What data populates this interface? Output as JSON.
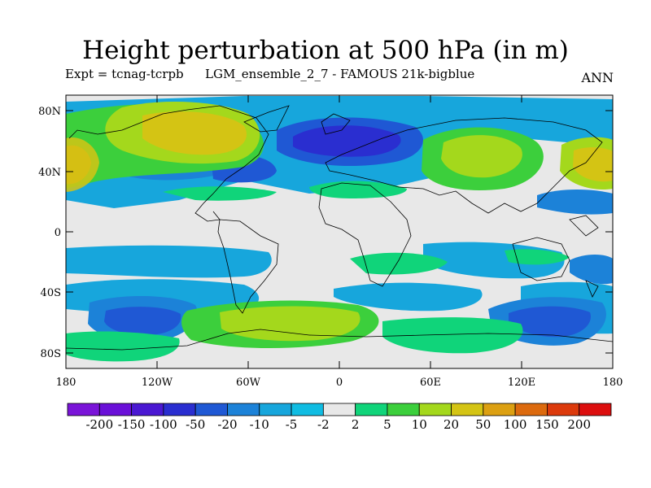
{
  "title": "Height perturbation at 500 hPa (in m)",
  "expt_label": "Expt = tcnag-tcrpb",
  "ensemble_label": "LGM_ensemble_2_7 - FAMOUS 21k-bigblue",
  "season": "ANN",
  "lat_ticks": [
    "80N",
    "40N",
    "0",
    "40S",
    "80S"
  ],
  "lon_ticks": [
    "180",
    "120W",
    "60W",
    "0",
    "60E",
    "120E",
    "180"
  ],
  "colorbar": {
    "labels": [
      "-200",
      "-150",
      "-100",
      "-50",
      "-20",
      "-10",
      "-5",
      "-2",
      "2",
      "5",
      "10",
      "20",
      "50",
      "100",
      "150",
      "200"
    ],
    "colors": [
      "#7a14d8",
      "#6a10d8",
      "#4a18d2",
      "#2a2ed0",
      "#1f58d4",
      "#1c82d8",
      "#17a6dc",
      "#10bce2",
      "#e8e8e8",
      "#10d47a",
      "#3ccf3c",
      "#a4d81c",
      "#d4c414",
      "#dca012",
      "#dc6a0e",
      "#dc3a0c",
      "#dc0e0e"
    ]
  },
  "palette": {
    "neutral": "#e8e8e8",
    "light_blue": "#17a6dc",
    "mid_blue": "#1c82d8",
    "blue": "#1f58d4",
    "dark_blue": "#2a2ed0",
    "teal_green": "#10d47a",
    "green": "#3ccf3c",
    "yellow_green": "#a4d81c",
    "yellow": "#d4c414",
    "orange": "#dca012"
  }
}
